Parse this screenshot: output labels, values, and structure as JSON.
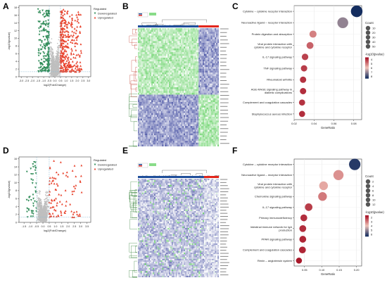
{
  "panels": {
    "A": {
      "letter": "A"
    },
    "B": {
      "letter": "B"
    },
    "C": {
      "letter": "C"
    },
    "D": {
      "letter": "D"
    },
    "E": {
      "letter": "E"
    },
    "F": {
      "letter": "F"
    }
  },
  "colors": {
    "down": "#2e8b57",
    "up": "#e8402a",
    "ns": "#bfbfbf",
    "heat_low": "#3ac43a",
    "heat_high": "#1f2b8f",
    "heat_mid": "#ffffff",
    "group1": "#1f4e9a",
    "group2": "#e2261c"
  },
  "chart_data": [
    {
      "panel": "A",
      "type": "scatter",
      "subtype": "volcano",
      "xlabel": "log2(FoldChange)",
      "ylabel": "-log10(pvalue)",
      "xticks": [
        "-3.0",
        "-2.5",
        "-2.0",
        "-1.5",
        "-1.0",
        "-0.5",
        "0.0",
        "0.5",
        "1.0",
        "1.5",
        "2.0",
        "2.5",
        "3.0"
      ],
      "yticks": [
        "0",
        "2",
        "4",
        "6",
        "8",
        "10",
        "12",
        "14",
        "16",
        "18"
      ],
      "xlim": [
        -3.2,
        3.2
      ],
      "ylim": [
        0,
        18.5
      ],
      "thresholds": {
        "logfc": [
          -0.5,
          0.5
        ],
        "pvalue_line": 1.3
      },
      "legend_title": "Regulated",
      "legend": [
        "Downregulated",
        "Upregulated"
      ],
      "legend_position": "top-right",
      "counts": {
        "down": 200,
        "up": 320,
        "ns": 1500
      },
      "spread": {
        "down_x": [
          -1.5,
          -0.5
        ],
        "up_x": [
          0.5,
          2.4
        ],
        "max_y": 18
      }
    },
    {
      "panel": "B",
      "type": "heatmap",
      "rows": 64,
      "cols": 60,
      "group_split_col": 45,
      "pattern": "top half green left blue right, bottom half blue left green right"
    },
    {
      "panel": "C",
      "type": "scatter",
      "subtype": "bubble",
      "title": "",
      "xlabel": "GeneRatio",
      "xticks": [
        "0.02",
        "0.04",
        "0.06",
        "0.08"
      ],
      "xlim": [
        0.02,
        0.088
      ],
      "categories": [
        "Cytokine – cytokine receptor interaction",
        "Neuroactive ligand – receptor interaction",
        "Protein digestion and absorption",
        "Viral protein interaction with|cytokine and cytokine receptor",
        "IL-17 signaling pathway",
        "TNF signaling pathway",
        "Rheumatoid arthritis",
        "AGE-RAGE signaling pathway in|diabetic complications",
        "Complement and coagulation cascades",
        "Staphylococcus aureus infection"
      ],
      "x": [
        0.083,
        0.069,
        0.039,
        0.036,
        0.031,
        0.03,
        0.029,
        0.029,
        0.028,
        0.028
      ],
      "count": [
        52,
        44,
        14,
        13,
        11,
        10,
        10,
        10,
        9,
        9
      ],
      "neglog10p": [
        9,
        7,
        4.2,
        3.6,
        3.0,
        2.9,
        2.7,
        2.6,
        2.7,
        2.6
      ],
      "size_legend_title": "Count",
      "size_legend": [
        10,
        20,
        30,
        40,
        50
      ],
      "color_legend_title": "-log10(pvalue)",
      "color_legend_ticks": [
        "4",
        "5",
        "6",
        "7",
        "8"
      ],
      "color_range": [
        2,
        9
      ]
    },
    {
      "panel": "D",
      "type": "scatter",
      "subtype": "volcano",
      "xlabel": "log2(FoldChange)",
      "ylabel": "-log10(pvalue)",
      "xticks": [
        "-1.5",
        "-1.0",
        "-0.5",
        "0.0",
        "0.5",
        "1.0",
        "1.5",
        "2.0",
        "2.5",
        "3.0",
        "3.5"
      ],
      "yticks": [
        "0",
        "2",
        "4",
        "6",
        "8",
        "10",
        "12",
        "14",
        "16"
      ],
      "xlim": [
        -1.9,
        3.8
      ],
      "ylim": [
        0,
        16.5
      ],
      "thresholds": {
        "logfc": [
          -0.5,
          0.5
        ],
        "pvalue_line": 1.3
      },
      "legend_title": "Regulated",
      "legend": [
        "Downregulated",
        "Upregulated"
      ],
      "legend_position": "top-right",
      "counts": {
        "down": 45,
        "up": 90,
        "ns": 1400
      },
      "spread": {
        "down_x": [
          -1.3,
          -0.5
        ],
        "up_x": [
          0.5,
          3.2
        ],
        "max_y": 16
      }
    },
    {
      "panel": "E",
      "type": "heatmap",
      "rows": 64,
      "cols": 60,
      "group_split_col": 49,
      "pattern": "mostly blue-white, few green cells on left"
    },
    {
      "panel": "F",
      "type": "scatter",
      "subtype": "bubble",
      "title": "",
      "xlabel": "GeneRatio",
      "xticks": [
        "0.05",
        "0.10",
        "0.15",
        "0.20"
      ],
      "xlim": [
        0.02,
        0.215
      ],
      "categories": [
        "Cytokine – cytokine receptor interaction",
        "Neuroactive ligand – receptor interaction",
        "Viral protein interaction with|cytokine and cytokine receptor",
        "Chemokine signaling pathway",
        "IL-17 signaling pathway",
        "Primary immunodeficiency",
        "Intestinal immune network for IgA|production",
        "PPAR signaling pathway",
        "Complement and coagulation cascades",
        "Renin – angiotensin system"
      ],
      "x": [
        0.195,
        0.148,
        0.105,
        0.102,
        0.062,
        0.048,
        0.045,
        0.045,
        0.044,
        0.034
      ],
      "count": [
        12,
        9,
        6,
        6,
        4,
        3,
        3,
        3,
        3,
        2
      ],
      "neglog10p": [
        5.8,
        3.0,
        3.3,
        2.7,
        1.9,
        1.7,
        1.7,
        1.6,
        1.6,
        1.4
      ],
      "size_legend_title": "Count",
      "size_legend": [
        2,
        4,
        6,
        8,
        10,
        12
      ],
      "color_legend_title": "-log10(pvalue)",
      "color_legend_ticks": [
        "2",
        "3",
        "4",
        "5",
        "6"
      ],
      "color_range": [
        1.3,
        6
      ]
    }
  ]
}
